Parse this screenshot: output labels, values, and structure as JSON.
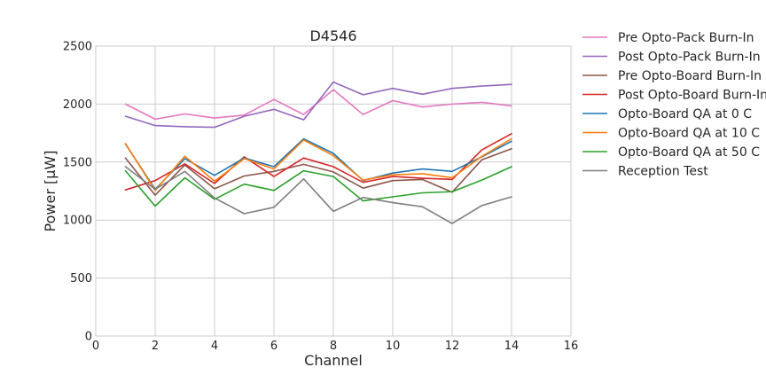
{
  "chart_data": {
    "type": "line",
    "title": "D4546",
    "xlabel": "Channel",
    "ylabel": "Power [μW]",
    "xlim": [
      0,
      16
    ],
    "ylim": [
      0,
      2500
    ],
    "xticks": [
      0,
      2,
      4,
      6,
      8,
      10,
      12,
      14,
      16
    ],
    "yticks": [
      0,
      500,
      1000,
      1500,
      2000,
      2500
    ],
    "grid": true,
    "legend_position": "outside-right",
    "x": [
      1,
      2,
      3,
      4,
      5,
      6,
      7,
      8,
      9,
      10,
      11,
      12,
      13,
      14
    ],
    "series": [
      {
        "name": "Pre Opto-Pack Burn-In",
        "color": "#e377c2",
        "values": [
          2000,
          1870,
          1915,
          1880,
          1905,
          2040,
          1910,
          2125,
          1910,
          2030,
          1975,
          2000,
          2015,
          1985
        ]
      },
      {
        "name": "Post Opto-Pack Burn-In",
        "color": "#9467bd",
        "values": [
          1895,
          1815,
          1805,
          1800,
          1895,
          1955,
          1865,
          2190,
          2080,
          2135,
          2085,
          2135,
          2155,
          2170
        ]
      },
      {
        "name": "Pre Opto-Board Burn-In",
        "color": "#8c564b",
        "values": [
          1535,
          1215,
          1475,
          1270,
          1380,
          1420,
          1480,
          1415,
          1275,
          1340,
          1350,
          1240,
          1520,
          1615
        ]
      },
      {
        "name": "Post Opto-Board Burn-In",
        "color": "#d62728",
        "values": [
          1260,
          1340,
          1485,
          1315,
          1545,
          1375,
          1535,
          1460,
          1325,
          1375,
          1360,
          1350,
          1605,
          1745
        ]
      },
      {
        "name": "Opto-Board QA at 0 C",
        "color": "#1f77b4",
        "values": [
          1655,
          1265,
          1530,
          1385,
          1535,
          1460,
          1700,
          1575,
          1340,
          1405,
          1440,
          1420,
          1545,
          1680
        ]
      },
      {
        "name": "Opto-Board QA at 10 C",
        "color": "#ff7f0e",
        "values": [
          1660,
          1255,
          1550,
          1335,
          1530,
          1440,
          1690,
          1555,
          1345,
          1390,
          1400,
          1365,
          1550,
          1700
        ]
      },
      {
        "name": "Opto-Board QA at 50 C",
        "color": "#2ca02c",
        "values": [
          1425,
          1120,
          1365,
          1180,
          1310,
          1255,
          1425,
          1375,
          1165,
          1200,
          1235,
          1245,
          1345,
          1460
        ]
      },
      {
        "name": "Reception Test",
        "color": "#7f7f7f",
        "values": [
          1460,
          1265,
          1420,
          1190,
          1055,
          1110,
          1355,
          1075,
          1195,
          1150,
          1115,
          970,
          1125,
          1200
        ]
      }
    ]
  }
}
